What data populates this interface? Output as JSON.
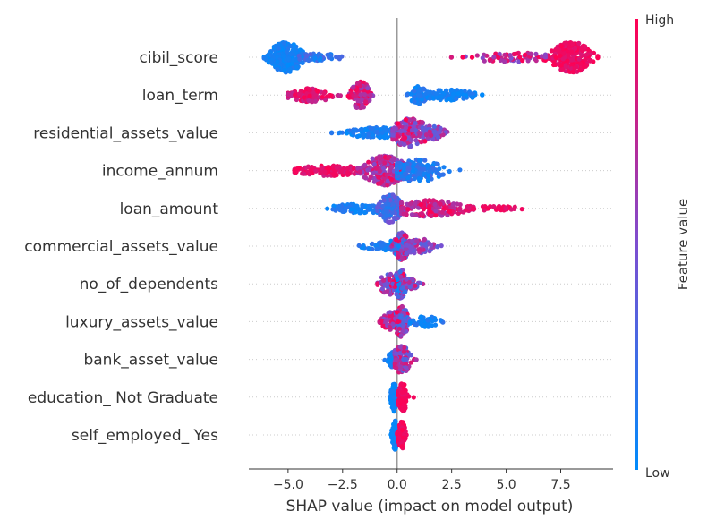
{
  "chart_data": {
    "type": "scatter",
    "subtype": "shap-beeswarm-summary",
    "title": "",
    "xlabel": "SHAP value (impact on model output)",
    "ylabel": "",
    "xlim": [
      -6.8,
      9.9
    ],
    "xticks": [
      -5.0,
      -2.5,
      0.0,
      2.5,
      5.0,
      7.5
    ],
    "xtick_labels": [
      "−5.0",
      "−2.5",
      "0.0",
      "2.5",
      "5.0",
      "7.5"
    ],
    "zero_line": 0.0,
    "colorbar": {
      "label": "Feature value",
      "high_label": "High",
      "low_label": "Low",
      "low_color": "#008bfb",
      "mid_color": "#7d4ed0",
      "high_color": "#ff0052"
    },
    "features": [
      {
        "name": "cibil_score",
        "clusters": [
          {
            "center": -5.1,
            "spread": 0.45,
            "min": -6.1,
            "max": -3.0,
            "height": 1.0,
            "count": 260,
            "color": [
              0.0,
              0.15
            ]
          },
          {
            "center": -3.6,
            "spread": 0.6,
            "min": -4.5,
            "max": -1.5,
            "height": 0.25,
            "count": 40,
            "color": [
              0.05,
              0.35
            ]
          },
          {
            "center": 8.0,
            "spread": 0.55,
            "min": 5.5,
            "max": 9.2,
            "height": 1.0,
            "count": 240,
            "color": [
              0.85,
              1.0
            ]
          },
          {
            "center": 5.2,
            "spread": 1.3,
            "min": 0.0,
            "max": 6.8,
            "height": 0.3,
            "count": 70,
            "color": [
              0.5,
              1.0
            ]
          }
        ]
      },
      {
        "name": "loan_term",
        "clusters": [
          {
            "center": -4.0,
            "spread": 0.6,
            "min": -5.0,
            "max": -2.6,
            "height": 0.45,
            "count": 110,
            "color": [
              0.75,
              1.0
            ]
          },
          {
            "center": -1.7,
            "spread": 0.25,
            "min": -2.3,
            "max": -0.2,
            "height": 0.95,
            "count": 120,
            "color": [
              0.55,
              1.0
            ]
          },
          {
            "center": 1.0,
            "spread": 0.25,
            "min": 0.4,
            "max": 1.6,
            "height": 0.6,
            "count": 60,
            "color": [
              0.0,
              0.2
            ]
          },
          {
            "center": 2.4,
            "spread": 0.7,
            "min": 1.4,
            "max": 3.9,
            "height": 0.35,
            "count": 90,
            "color": [
              0.0,
              0.15
            ]
          }
        ]
      },
      {
        "name": "residential_assets_value",
        "clusters": [
          {
            "center": -0.9,
            "spread": 0.8,
            "min": -3.0,
            "max": 0.0,
            "height": 0.35,
            "count": 120,
            "color": [
              0.0,
              0.2
            ]
          },
          {
            "center": 0.6,
            "spread": 0.5,
            "min": -0.2,
            "max": 1.8,
            "height": 0.95,
            "count": 170,
            "color": [
              0.35,
              1.0
            ]
          },
          {
            "center": 1.6,
            "spread": 0.35,
            "min": 1.0,
            "max": 2.3,
            "height": 0.45,
            "count": 60,
            "color": [
              0.3,
              0.8
            ]
          }
        ]
      },
      {
        "name": "income_annum",
        "clusters": [
          {
            "center": -3.0,
            "spread": 1.0,
            "min": -4.7,
            "max": -1.0,
            "height": 0.35,
            "count": 120,
            "color": [
              0.8,
              1.0
            ]
          },
          {
            "center": -0.6,
            "spread": 0.6,
            "min": -1.8,
            "max": 0.3,
            "height": 1.0,
            "count": 220,
            "color": [
              0.5,
              1.0
            ]
          },
          {
            "center": 0.9,
            "spread": 0.7,
            "min": 0.0,
            "max": 3.0,
            "height": 0.75,
            "count": 160,
            "color": [
              0.0,
              0.3
            ]
          }
        ]
      },
      {
        "name": "loan_amount",
        "clusters": [
          {
            "center": -1.5,
            "spread": 1.0,
            "min": -3.2,
            "max": 0.0,
            "height": 0.3,
            "count": 90,
            "color": [
              0.0,
              0.2
            ]
          },
          {
            "center": -0.3,
            "spread": 0.3,
            "min": -0.9,
            "max": 0.3,
            "height": 0.95,
            "count": 130,
            "color": [
              0.1,
              0.5
            ]
          },
          {
            "center": 1.5,
            "spread": 1.0,
            "min": 0.2,
            "max": 3.5,
            "height": 0.55,
            "count": 170,
            "color": [
              0.6,
              1.0
            ]
          },
          {
            "center": 4.5,
            "spread": 0.7,
            "min": 3.3,
            "max": 5.8,
            "height": 0.15,
            "count": 40,
            "color": [
              0.85,
              1.0
            ]
          }
        ]
      },
      {
        "name": "commercial_assets_value",
        "clusters": [
          {
            "center": -0.5,
            "spread": 0.6,
            "min": -2.0,
            "max": 0.2,
            "height": 0.35,
            "count": 70,
            "color": [
              0.0,
              0.2
            ]
          },
          {
            "center": 0.2,
            "spread": 0.2,
            "min": -0.3,
            "max": 0.7,
            "height": 0.9,
            "count": 130,
            "color": [
              0.0,
              1.0
            ]
          },
          {
            "center": 1.0,
            "spread": 0.4,
            "min": 0.4,
            "max": 2.1,
            "height": 0.5,
            "count": 80,
            "color": [
              0.35,
              0.8
            ]
          }
        ]
      },
      {
        "name": "no_of_dependents",
        "clusters": [
          {
            "center": -0.3,
            "spread": 0.3,
            "min": -0.9,
            "max": 0.1,
            "height": 0.7,
            "count": 80,
            "color": [
              0.3,
              1.0
            ]
          },
          {
            "center": 0.15,
            "spread": 0.15,
            "min": -0.2,
            "max": 0.5,
            "height": 1.0,
            "count": 110,
            "color": [
              0.0,
              1.0
            ]
          },
          {
            "center": 0.6,
            "spread": 0.25,
            "min": 0.3,
            "max": 1.2,
            "height": 0.35,
            "count": 50,
            "color": [
              0.2,
              0.9
            ]
          }
        ]
      },
      {
        "name": "luxury_assets_value",
        "clusters": [
          {
            "center": -0.2,
            "spread": 0.3,
            "min": -0.9,
            "max": 0.2,
            "height": 0.65,
            "count": 80,
            "color": [
              0.5,
              1.0
            ]
          },
          {
            "center": 0.2,
            "spread": 0.2,
            "min": -0.2,
            "max": 0.7,
            "height": 1.0,
            "count": 110,
            "color": [
              0.2,
              1.0
            ]
          },
          {
            "center": 1.3,
            "spread": 0.4,
            "min": 0.6,
            "max": 2.1,
            "height": 0.35,
            "count": 50,
            "color": [
              0.0,
              0.2
            ]
          }
        ]
      },
      {
        "name": "bank_asset_value",
        "clusters": [
          {
            "center": -0.15,
            "spread": 0.15,
            "min": -0.6,
            "max": 0.1,
            "height": 0.55,
            "count": 60,
            "color": [
              0.0,
              0.2
            ]
          },
          {
            "center": 0.2,
            "spread": 0.25,
            "min": -0.1,
            "max": 0.9,
            "height": 0.9,
            "count": 110,
            "color": [
              0.3,
              0.9
            ]
          }
        ]
      },
      {
        "name": "education_ Not Graduate",
        "clusters": [
          {
            "center": -0.15,
            "spread": 0.08,
            "min": -0.4,
            "max": 0.0,
            "height": 0.95,
            "count": 90,
            "color": [
              0.0,
              0.1
            ]
          },
          {
            "center": 0.25,
            "spread": 0.12,
            "min": 0.05,
            "max": 0.8,
            "height": 0.95,
            "count": 90,
            "color": [
              0.9,
              1.0
            ]
          }
        ]
      },
      {
        "name": "self_employed_ Yes",
        "clusters": [
          {
            "center": -0.1,
            "spread": 0.08,
            "min": -0.35,
            "max": 0.05,
            "height": 0.95,
            "count": 80,
            "color": [
              0.0,
              0.1
            ]
          },
          {
            "center": 0.2,
            "spread": 0.1,
            "min": 0.0,
            "max": 0.6,
            "height": 0.95,
            "count": 80,
            "color": [
              0.9,
              1.0
            ]
          }
        ]
      }
    ]
  }
}
